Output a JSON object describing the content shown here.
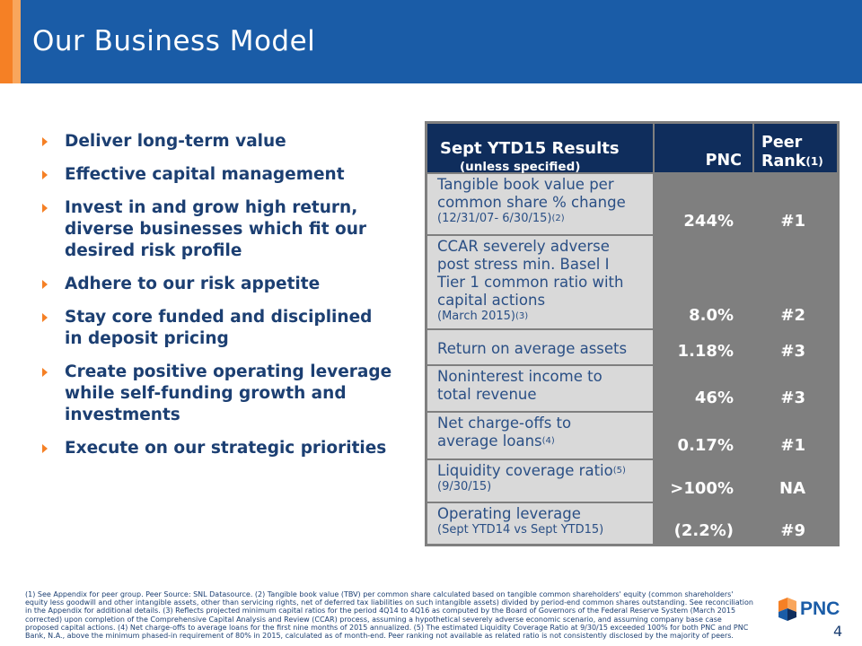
{
  "slide": {
    "title": "Our Business Model",
    "page_number": "4",
    "colors": {
      "header_blue": "#1a5ca7",
      "accent_orange": "#f58025",
      "navy_text": "#1c3f72"
    }
  },
  "bullets": [
    "Deliver long-term value",
    "Effective capital management",
    "Invest in and grow high return, diverse businesses which fit our desired risk profile",
    "Adhere to our risk appetite",
    "Stay core funded and disciplined in deposit pricing",
    "Create positive operating leverage while self-funding growth and investments",
    "Execute on our strategic priorities"
  ],
  "table": {
    "header": {
      "metric": "Sept YTD15 Results",
      "metric_sub": "(unless specified)",
      "pnc": "PNC",
      "rank": "Peer",
      "rank_line2": "Rank",
      "rank_note": "(1)"
    },
    "rows": [
      {
        "lines": [
          "Tangible book value per",
          "common share % change"
        ],
        "sub": "(12/31/07- 6/30/15)",
        "sub_note": "(2)",
        "pnc": "244%",
        "rank": "#1"
      },
      {
        "lines": [
          "CCAR severely adverse",
          "post stress min. Basel I",
          "Tier 1 common ratio with",
          "capital actions"
        ],
        "sub": "(March 2015)",
        "sub_note": "(3)",
        "pnc": "8.0%",
        "rank": "#2"
      },
      {
        "lines": [
          "Return on average assets"
        ],
        "pnc": "1.18%",
        "rank": "#3"
      },
      {
        "lines": [
          "Noninterest income to",
          "total revenue"
        ],
        "pnc": "46%",
        "rank": "#3"
      },
      {
        "lines": [
          "Net charge-offs to",
          "average loans"
        ],
        "line_note": "(4)",
        "pnc": "0.17%",
        "rank": "#1"
      },
      {
        "lines": [
          "Liquidity coverage ratio"
        ],
        "line_note": "(5)",
        "sub": "(9/30/15)",
        "pnc": ">100%",
        "rank": "NA"
      },
      {
        "lines": [
          "Operating leverage"
        ],
        "sub": "(Sept YTD14 vs Sept YTD15)",
        "pnc": "(2.2%)",
        "rank": "#9"
      }
    ]
  },
  "footnote": "(1) See Appendix for peer group. Peer Source: SNL Datasource. (2) Tangible book value (TBV) per common share calculated based on tangible common shareholders' equity (common shareholders' equity less goodwill and other intangible assets, other than servicing rights, net of deferred tax liabilities on such intangible assets) divided by period-end common shares outstanding. See reconciliation in the Appendix for additional details. (3) Reflects projected minimum capital ratios for the period 4Q14 to 4Q16 as computed by the Board of Governors of the Federal Reserve System (March 2015 corrected) upon completion of the Comprehensive Capital Analysis and Review (CCAR) process, assuming a hypothetical severely adverse economic scenario, and assuming company base case proposed capital actions. (4) Net charge-offs to average loans for the first nine months of 2015 annualized. (5) The estimated Liquidity Coverage Ratio at 9/30/15 exceeded 100% for both PNC and PNC Bank, N.A., above the minimum phased-in requirement of 80% in 2015, calculated as of month-end. Peer ranking not available as related ratio is not consistently disclosed by the majority of peers.",
  "logo": {
    "text": "PNC",
    "icon": "pnc-wing-icon",
    "colors": [
      "#f58025",
      "#1a5ca7"
    ]
  }
}
